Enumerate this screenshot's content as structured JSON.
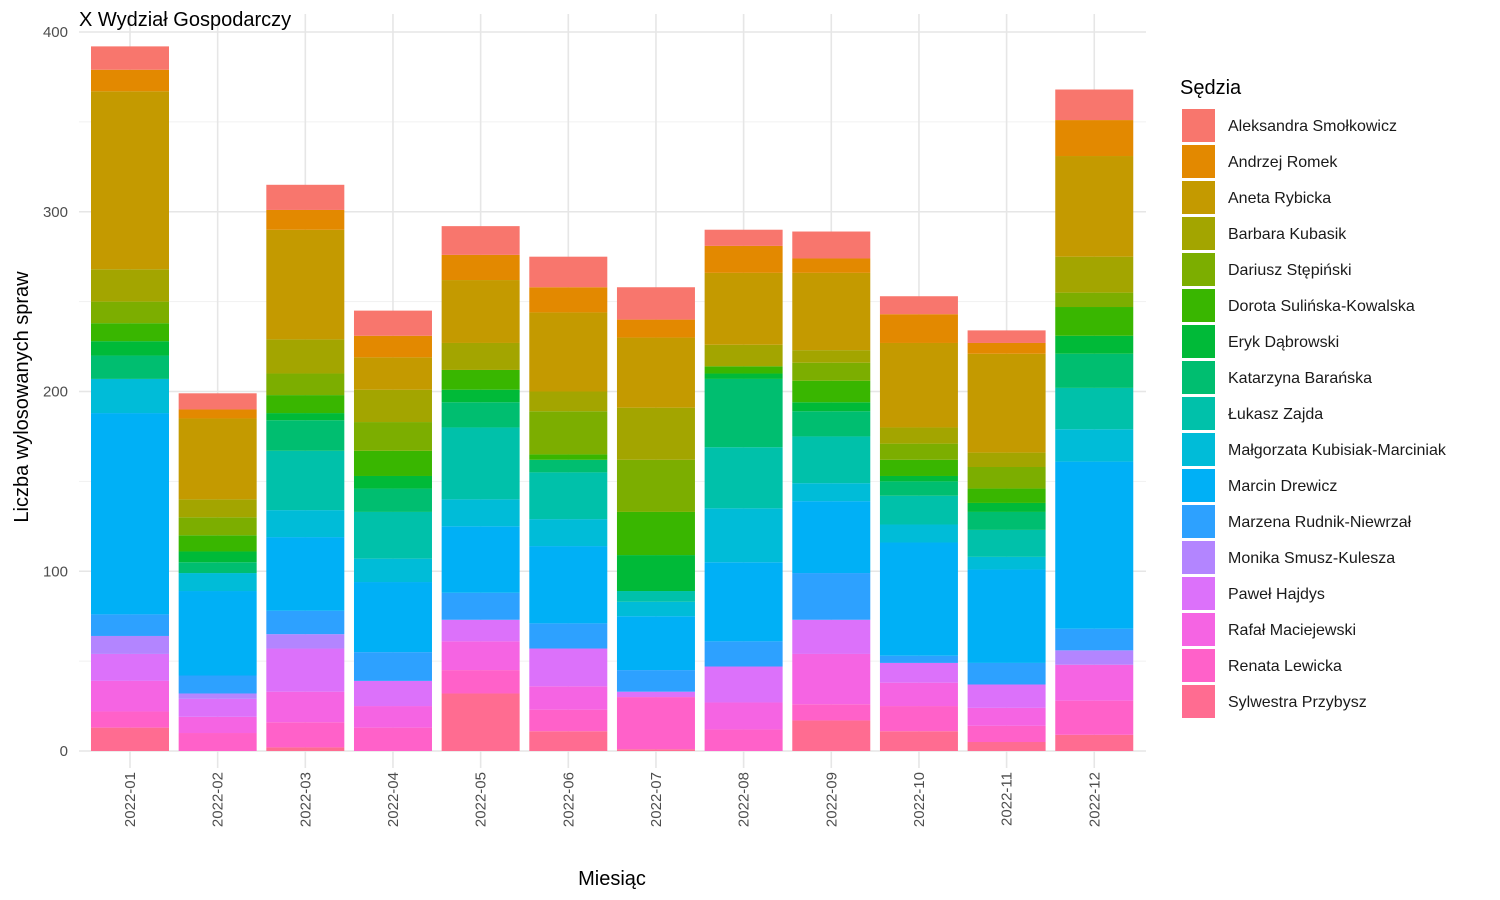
{
  "chart_data": {
    "type": "bar",
    "stacked": true,
    "title": "X Wydział Gospodarczy",
    "xlabel": "Miesiąc",
    "ylabel": "Liczba wylosowanych spraw",
    "ylim": [
      0,
      400
    ],
    "yticks": [
      0,
      100,
      200,
      300,
      400
    ],
    "grid": true,
    "legend_title": "Sędzia",
    "legend_position": "right",
    "categories": [
      "2022-01",
      "2022-02",
      "2022-03",
      "2022-04",
      "2022-05",
      "2022-06",
      "2022-07",
      "2022-08",
      "2022-09",
      "2022-10",
      "2022-11",
      "2022-12"
    ],
    "series": [
      {
        "name": "Sylwestra Przybysz",
        "color": "#FF6C91",
        "values": [
          13,
          0,
          2,
          0,
          32,
          11,
          1,
          0,
          17,
          11,
          5,
          9
        ]
      },
      {
        "name": "Renata Lewicka",
        "color": "#FF61C9",
        "values": [
          9,
          10,
          14,
          13,
          13,
          12,
          29,
          12,
          9,
          14,
          9,
          19
        ]
      },
      {
        "name": "Rafał Maciejewski",
        "color": "#F564E3",
        "values": [
          17,
          9,
          17,
          12,
          16,
          13,
          0,
          15,
          28,
          13,
          10,
          20
        ]
      },
      {
        "name": "Paweł Hajdys",
        "color": "#DC71FA",
        "values": [
          15,
          10,
          24,
          14,
          12,
          21,
          3,
          20,
          19,
          11,
          13,
          0
        ]
      },
      {
        "name": "Monika Smusz-Kulesza",
        "color": "#B385FF",
        "values": [
          10,
          3,
          8,
          0,
          0,
          0,
          0,
          0,
          0,
          0,
          0,
          8
        ]
      },
      {
        "name": "Marzena Rudnik-Niewrzał",
        "color": "#2DA1FF",
        "values": [
          12,
          10,
          13,
          16,
          15,
          14,
          12,
          14,
          26,
          4,
          12,
          12
        ]
      },
      {
        "name": "Marcin Drewicz",
        "color": "#00B0F6",
        "values": [
          112,
          47,
          41,
          39,
          37,
          43,
          30,
          44,
          40,
          63,
          52,
          93
        ]
      },
      {
        "name": "Małgorzata Kubisiak-Marciniak",
        "color": "#00BCD8",
        "values": [
          19,
          10,
          15,
          13,
          15,
          15,
          8,
          30,
          10,
          10,
          7,
          18
        ]
      },
      {
        "name": "Łukasz Zajda",
        "color": "#00C1AA",
        "values": [
          0,
          0,
          33,
          26,
          40,
          26,
          6,
          34,
          26,
          16,
          15,
          23
        ]
      },
      {
        "name": "Katarzyna Barańska",
        "color": "#00BE70",
        "values": [
          13,
          6,
          17,
          13,
          14,
          7,
          0,
          38,
          14,
          8,
          10,
          19
        ]
      },
      {
        "name": "Eryk Dąbrowski",
        "color": "#00BA38",
        "values": [
          8,
          6,
          4,
          7,
          7,
          0,
          20,
          3,
          5,
          3,
          5,
          10
        ]
      },
      {
        "name": "Dorota Sulińska-Kowalska",
        "color": "#39B600",
        "values": [
          10,
          9,
          10,
          14,
          11,
          3,
          24,
          4,
          12,
          9,
          8,
          16
        ]
      },
      {
        "name": "Dariusz Stępiński",
        "color": "#7CAE00",
        "values": [
          12,
          10,
          12,
          16,
          0,
          24,
          29,
          0,
          10,
          9,
          12,
          8
        ]
      },
      {
        "name": "Barbara Kubasik",
        "color": "#A3A500",
        "values": [
          18,
          10,
          19,
          18,
          15,
          11,
          29,
          12,
          7,
          9,
          8,
          20
        ]
      },
      {
        "name": "Aneta Rybicka",
        "color": "#C49A00",
        "values": [
          99,
          45,
          61,
          18,
          35,
          44,
          39,
          40,
          43,
          47,
          55,
          56
        ]
      },
      {
        "name": "Andrzej Romek",
        "color": "#E38900",
        "values": [
          12,
          5,
          11,
          12,
          14,
          14,
          10,
          15,
          8,
          16,
          6,
          20
        ]
      },
      {
        "name": "Aleksandra Smołkowicz",
        "color": "#F8766D",
        "values": [
          13,
          9,
          14,
          14,
          16,
          17,
          18,
          9,
          15,
          10,
          7,
          17
        ]
      }
    ]
  }
}
